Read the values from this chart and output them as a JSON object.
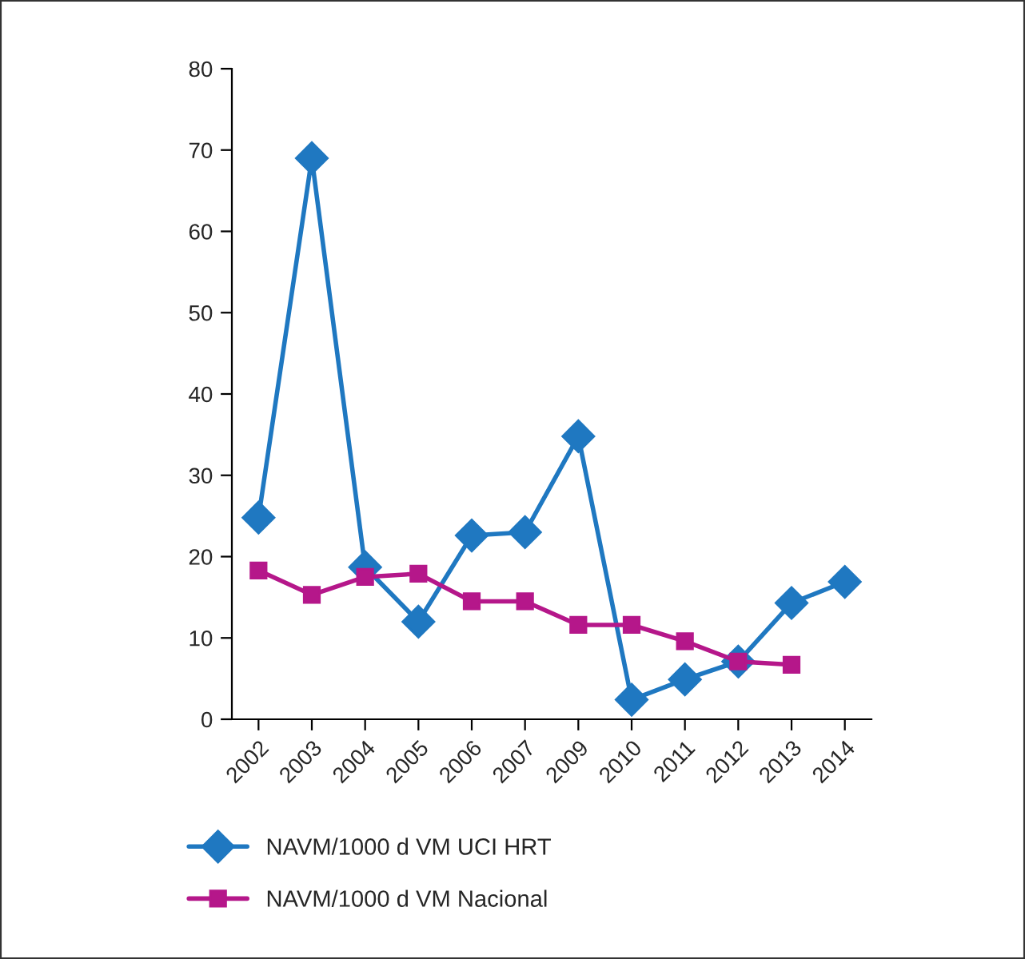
{
  "chart_data": {
    "type": "line",
    "categories": [
      "2002",
      "2003",
      "2004",
      "2005",
      "2006",
      "2007",
      "2009",
      "2010",
      "2011",
      "2012",
      "2013",
      "2014"
    ],
    "series": [
      {
        "name": "NAVM/1000 d VM UCI HRT",
        "color": "#1f78c1",
        "marker": "diamond",
        "values": [
          24.8,
          69,
          18.7,
          12,
          22.6,
          23,
          34.8,
          2.4,
          4.9,
          7.1,
          14.3,
          16.9
        ]
      },
      {
        "name": "NAVM/1000 d VM Nacional",
        "color": "#b5178a",
        "marker": "square",
        "values": [
          18.3,
          15.3,
          17.5,
          17.9,
          14.5,
          14.5,
          11.6,
          11.6,
          9.6,
          7.1,
          6.7,
          null
        ]
      }
    ],
    "ylim": [
      0,
      80
    ],
    "yticks": [
      0,
      10,
      20,
      30,
      40,
      50,
      60,
      70,
      80
    ],
    "grid": false,
    "legend": "bottom",
    "line_style": "solid"
  }
}
